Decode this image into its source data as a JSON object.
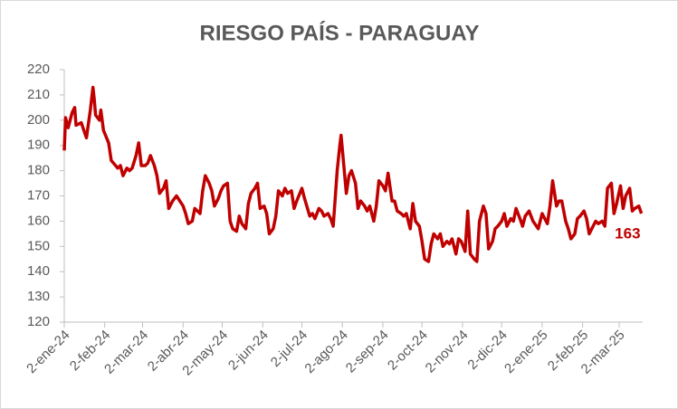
{
  "chart_data": {
    "type": "line",
    "title": "RIESGO PAÍS - PARAGUAY",
    "color": "#c00000",
    "x": [
      "2024-01-02",
      "2024-01-03",
      "2024-01-05",
      "2024-01-08",
      "2024-01-10",
      "2024-01-11",
      "2024-01-15",
      "2024-01-17",
      "2024-01-19",
      "2024-01-22",
      "2024-01-24",
      "2024-01-25",
      "2024-01-26",
      "2024-01-29",
      "2024-01-30",
      "2024-02-01",
      "2024-02-05",
      "2024-02-07",
      "2024-02-12",
      "2024-02-14",
      "2024-02-16",
      "2024-02-19",
      "2024-02-21",
      "2024-02-23",
      "2024-02-26",
      "2024-02-28",
      "2024-03-01",
      "2024-03-04",
      "2024-03-06",
      "2024-03-08",
      "2024-03-11",
      "2024-03-13",
      "2024-03-15",
      "2024-03-18",
      "2024-03-20",
      "2024-03-22",
      "2024-03-25",
      "2024-03-28",
      "2024-04-02",
      "2024-04-04",
      "2024-04-06",
      "2024-04-09",
      "2024-04-11",
      "2024-04-15",
      "2024-04-17",
      "2024-04-19",
      "2024-04-22",
      "2024-04-24",
      "2024-04-26",
      "2024-04-29",
      "2024-05-01",
      "2024-05-03",
      "2024-05-06",
      "2024-05-08",
      "2024-05-10",
      "2024-05-13",
      "2024-05-15",
      "2024-05-17",
      "2024-05-20",
      "2024-05-22",
      "2024-05-24",
      "2024-05-27",
      "2024-05-29",
      "2024-05-31",
      "2024-06-03",
      "2024-06-05",
      "2024-06-07",
      "2024-06-10",
      "2024-06-12",
      "2024-06-14",
      "2024-06-17",
      "2024-06-19",
      "2024-06-21",
      "2024-06-24",
      "2024-06-26",
      "2024-06-28",
      "2024-07-02",
      "2024-07-04",
      "2024-07-08",
      "2024-07-10",
      "2024-07-12",
      "2024-07-15",
      "2024-07-17",
      "2024-07-19",
      "2024-07-22",
      "2024-07-24",
      "2024-07-26",
      "2024-07-29",
      "2024-07-31",
      "2024-08-01",
      "2024-08-05",
      "2024-08-07",
      "2024-08-09",
      "2024-08-12",
      "2024-08-14",
      "2024-08-16",
      "2024-08-19",
      "2024-08-21",
      "2024-08-23",
      "2024-08-26",
      "2024-08-28",
      "2024-08-30",
      "2024-09-02",
      "2024-09-04",
      "2024-09-06",
      "2024-09-09",
      "2024-09-11",
      "2024-09-13",
      "2024-09-16",
      "2024-09-18",
      "2024-09-20",
      "2024-09-23",
      "2024-09-25",
      "2024-09-27",
      "2024-09-30",
      "2024-10-02",
      "2024-10-04",
      "2024-10-07",
      "2024-10-09",
      "2024-10-11",
      "2024-10-14",
      "2024-10-16",
      "2024-10-18",
      "2024-10-21",
      "2024-10-23",
      "2024-10-25",
      "2024-10-28",
      "2024-10-30",
      "2024-11-01",
      "2024-11-04",
      "2024-11-06",
      "2024-11-08",
      "2024-11-11",
      "2024-11-13",
      "2024-11-15",
      "2024-11-18",
      "2024-11-20",
      "2024-11-22",
      "2024-11-25",
      "2024-11-27",
      "2024-11-29",
      "2024-12-02",
      "2024-12-04",
      "2024-12-06",
      "2024-12-09",
      "2024-12-11",
      "2024-12-13",
      "2024-12-16",
      "2024-12-18",
      "2024-12-20",
      "2024-12-23",
      "2024-12-26",
      "2024-12-30",
      "2025-01-02",
      "2025-01-06",
      "2025-01-08",
      "2025-01-10",
      "2025-01-13",
      "2025-01-15",
      "2025-01-17",
      "2025-01-20",
      "2025-01-22",
      "2025-01-24",
      "2025-01-27",
      "2025-01-29",
      "2025-01-31",
      "2025-02-03",
      "2025-02-05",
      "2025-02-07",
      "2025-02-10",
      "2025-02-12",
      "2025-02-14",
      "2025-02-17",
      "2025-02-19",
      "2025-02-21",
      "2025-02-24",
      "2025-02-26",
      "2025-02-28",
      "2025-03-03",
      "2025-03-05",
      "2025-03-07",
      "2025-03-10",
      "2025-03-12",
      "2025-03-14",
      "2025-03-17",
      "2025-03-19"
    ],
    "values": [
      188,
      201,
      197,
      203,
      205,
      198,
      199,
      196,
      193,
      204,
      213,
      208,
      202,
      200,
      204,
      196,
      191,
      184,
      181,
      182,
      178,
      181,
      180,
      181,
      186,
      191,
      182,
      182,
      183,
      186,
      182,
      178,
      171,
      173,
      176,
      165,
      168,
      170,
      166,
      163,
      159,
      160,
      165,
      163,
      172,
      178,
      175,
      172,
      166,
      169,
      172,
      174,
      175,
      160,
      157,
      156,
      162,
      159,
      157,
      167,
      171,
      173,
      175,
      165,
      166,
      163,
      155,
      157,
      162,
      172,
      170,
      173,
      171,
      172,
      165,
      168,
      173,
      169,
      162,
      163,
      161,
      165,
      164,
      162,
      163,
      161,
      158,
      180,
      190,
      194,
      171,
      178,
      180,
      175,
      165,
      168,
      166,
      164,
      166,
      160,
      166,
      176,
      174,
      172,
      179,
      168,
      168,
      164,
      163,
      162,
      163,
      157,
      167,
      160,
      158,
      152,
      145,
      144,
      151,
      155,
      153,
      155,
      150,
      152,
      151,
      153,
      147,
      153,
      152,
      148,
      164,
      147,
      145,
      144,
      160,
      166,
      163,
      149,
      152,
      157,
      158,
      160,
      163,
      158,
      161,
      160,
      165,
      161,
      158,
      162,
      164,
      160,
      157,
      163,
      159,
      166,
      176,
      166,
      168,
      168,
      160,
      157,
      153,
      155,
      161,
      162,
      164,
      161,
      155,
      158,
      160,
      159,
      160,
      158,
      173,
      175,
      163,
      167,
      174,
      165,
      170,
      173,
      164,
      165,
      166,
      163
    ],
    "xlim": [
      "2024-01-02",
      "2025-03-20"
    ],
    "xticks": [
      {
        "value": "2024-01-02",
        "label": "2-ene-24"
      },
      {
        "value": "2024-02-02",
        "label": "2-feb-24"
      },
      {
        "value": "2024-03-02",
        "label": "2-mar-24"
      },
      {
        "value": "2024-04-02",
        "label": "2-abr-24"
      },
      {
        "value": "2024-05-02",
        "label": "2-may-24"
      },
      {
        "value": "2024-06-02",
        "label": "2-jun-24"
      },
      {
        "value": "2024-07-02",
        "label": "2-jul-24"
      },
      {
        "value": "2024-08-02",
        "label": "2-ago-24"
      },
      {
        "value": "2024-09-02",
        "label": "2-sep-24"
      },
      {
        "value": "2024-10-02",
        "label": "2-oct-24"
      },
      {
        "value": "2024-11-02",
        "label": "2-nov-24"
      },
      {
        "value": "2024-12-02",
        "label": "2-dic-24"
      },
      {
        "value": "2025-01-02",
        "label": "2-ene-25"
      },
      {
        "value": "2025-02-02",
        "label": "2-feb-25"
      },
      {
        "value": "2025-03-02",
        "label": "2-mar-25"
      }
    ],
    "ylim": [
      120,
      220
    ],
    "yticks": [
      120,
      130,
      140,
      150,
      160,
      170,
      180,
      190,
      200,
      210,
      220
    ],
    "grid": false
  }
}
